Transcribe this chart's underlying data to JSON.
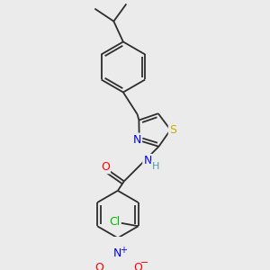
{
  "background_color": "#ebebeb",
  "bond_color": "#2d2d2d",
  "atom_colors": {
    "N": "#0000ff",
    "O": "#ff0000",
    "S": "#ccaa00",
    "Cl": "#00bb00",
    "H": "#5599aa"
  },
  "figsize": [
    3.0,
    3.0
  ],
  "dpi": 100,
  "lw": 1.3,
  "fontsize": 8
}
